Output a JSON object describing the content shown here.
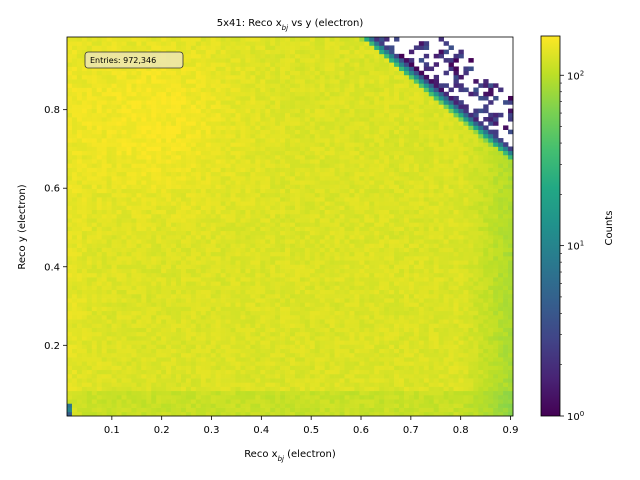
{
  "chart_data": {
    "type": "heatmap",
    "title": "5x41: Reco x",
    "title_sub": "bj",
    "title_suffix": " vs y (electron)",
    "xlabel": "Reco x",
    "xlabel_sub": "bj",
    "xlabel_suffix": " (electron)",
    "ylabel": "Reco y (electron)",
    "colorbar_label": "Counts",
    "annotation": "Entries: 972,346",
    "xlim": [
      0.01,
      0.905
    ],
    "ylim": [
      0.02,
      0.985
    ],
    "x_ticks": [
      0.1,
      0.2,
      0.3,
      0.4,
      0.5,
      0.6,
      0.7,
      0.8,
      0.9
    ],
    "x_tick_labels": [
      "0.1",
      "0.2",
      "0.3",
      "0.4",
      "0.5",
      "0.6",
      "0.7",
      "0.8",
      "0.9"
    ],
    "y_ticks": [
      0.2,
      0.4,
      0.6,
      0.8
    ],
    "y_tick_labels": [
      "0.2",
      "0.4",
      "0.6",
      "0.8"
    ],
    "color_scale": "log",
    "color_range": [
      1,
      170
    ],
    "colorbar_ticks": [
      {
        "value": 1,
        "base": "10",
        "exp": "0"
      },
      {
        "value": 10,
        "base": "10",
        "exp": "1"
      },
      {
        "value": 100,
        "base": "10",
        "exp": "2"
      }
    ],
    "colormap": "viridis",
    "bins": 90,
    "grid": false,
    "density_description": {
      "typical_counts": 130,
      "peak_region_counts": 170,
      "empty_region": "top-right beyond a diagonal edge from about (0.63, 0.985) to (0.905, 0.7)"
    }
  }
}
